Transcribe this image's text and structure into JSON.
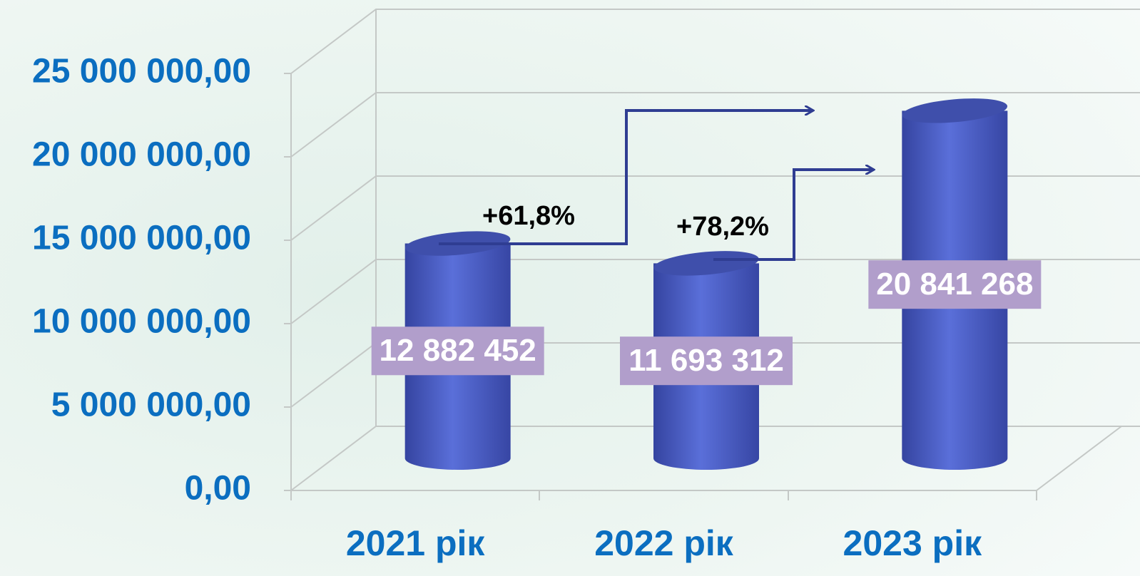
{
  "chart_data": {
    "type": "bar3d",
    "categories": [
      "2021 рік",
      "2022 рік",
      "2023 рік"
    ],
    "values": [
      12882452,
      11693312,
      20841268
    ],
    "value_labels": [
      "12 882 452",
      "11 693 312",
      "20 841 268"
    ],
    "color": "#4f63cc",
    "ylim": [
      0,
      25000000
    ],
    "yticks": [
      {
        "value": 0,
        "label": "0,00"
      },
      {
        "value": 5000000,
        "label": "5 000 000,00"
      },
      {
        "value": 10000000,
        "label": "10 000 000,00"
      },
      {
        "value": 15000000,
        "label": "15 000 000,00"
      },
      {
        "value": 20000000,
        "label": "20 000 000,00"
      },
      {
        "value": 25000000,
        "label": "25 000 000,00"
      }
    ],
    "grid": true,
    "annotations": [
      "+61,8%",
      "+78,2%"
    ]
  }
}
